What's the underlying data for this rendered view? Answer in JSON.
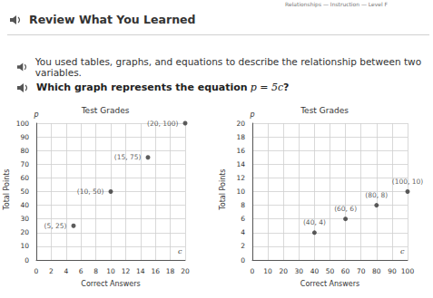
{
  "page": {
    "breadcrumb": "Relationships — Instruction — Level F",
    "heading": "Review What You Learned",
    "intro": "You used tables, graphs, and equations to describe the relationship between two variables.",
    "question_prefix": "Which graph represents the equation ",
    "question_equation": "p = 5c",
    "question_suffix": "?"
  },
  "chart_data": [
    {
      "type": "scatter",
      "title": "Test Grades",
      "xlabel": "Correct Answers",
      "ylabel": "Total Points",
      "x_variable": "c",
      "y_variable": "p",
      "x": [
        5,
        10,
        15,
        20
      ],
      "values": [
        25,
        50,
        75,
        100
      ],
      "value_labels": [
        "(5, 25)",
        "(10, 50)",
        "(15, 75)",
        "(20, 100)"
      ],
      "data_labels": true,
      "color": "#333333",
      "marker": "circle",
      "xlim": [
        0,
        20
      ],
      "xticks": [
        0,
        2,
        4,
        6,
        8,
        10,
        12,
        14,
        16,
        18,
        20
      ],
      "ylim": [
        0,
        100
      ],
      "yticks": [
        0,
        10,
        20,
        30,
        40,
        50,
        60,
        70,
        80,
        90,
        100
      ],
      "grid": true
    },
    {
      "type": "scatter",
      "title": "Test Grades",
      "xlabel": "Correct Answers",
      "ylabel": "Total Points",
      "x_variable": "c",
      "y_variable": "p",
      "x": [
        40,
        60,
        80,
        100
      ],
      "values": [
        4,
        6,
        8,
        10
      ],
      "value_labels": [
        "(40, 4)",
        "(60, 6)",
        "(80, 8)",
        "(100, 10)"
      ],
      "data_labels": true,
      "color": "#333333",
      "marker": "circle",
      "xlim": [
        0,
        100
      ],
      "xticks": [
        0,
        10,
        20,
        30,
        40,
        50,
        60,
        70,
        80,
        90,
        100
      ],
      "ylim": [
        0,
        20
      ],
      "yticks": [
        0,
        2,
        4,
        6,
        8,
        10,
        12,
        14,
        16,
        18,
        20
      ],
      "grid": true
    }
  ]
}
